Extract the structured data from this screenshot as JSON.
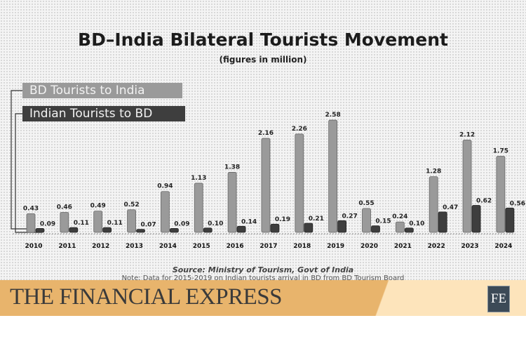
{
  "chart_data": {
    "type": "bar",
    "title": "BD–India Bilateral Tourists Movement",
    "subtitle": "(figures in million)",
    "categories": [
      "2010",
      "2011",
      "2012",
      "2013",
      "2014",
      "2015",
      "2016",
      "2017",
      "2018",
      "2019",
      "2020",
      "2021",
      "2022",
      "2023",
      "2024"
    ],
    "series": [
      {
        "name": "BD Tourists to India",
        "color": "#9a9a9a",
        "values": [
          0.43,
          0.46,
          0.49,
          0.52,
          0.94,
          1.13,
          1.38,
          2.16,
          2.26,
          2.58,
          0.55,
          0.24,
          1.28,
          2.12,
          1.75
        ]
      },
      {
        "name": "Indian Tourists to BD",
        "color": "#3e3e3e",
        "values": [
          0.09,
          0.11,
          0.11,
          0.07,
          0.09,
          0.1,
          0.14,
          0.19,
          0.21,
          0.27,
          0.15,
          0.1,
          0.47,
          0.62,
          0.56
        ]
      }
    ],
    "ylim": [
      0,
      2.6
    ],
    "grid": false,
    "legend": "top-left",
    "source": "Source: Ministry of Tourism, Govt of India",
    "note": "Note: Data for 2015-2019 on Indian tourists arrival in BD from BD Tourism Board"
  },
  "footer": {
    "brand": "THE FINANCIAL EXPRESS",
    "logo": "FE",
    "band_color": "#e8b46c",
    "logo_color": "#3c4a57"
  }
}
